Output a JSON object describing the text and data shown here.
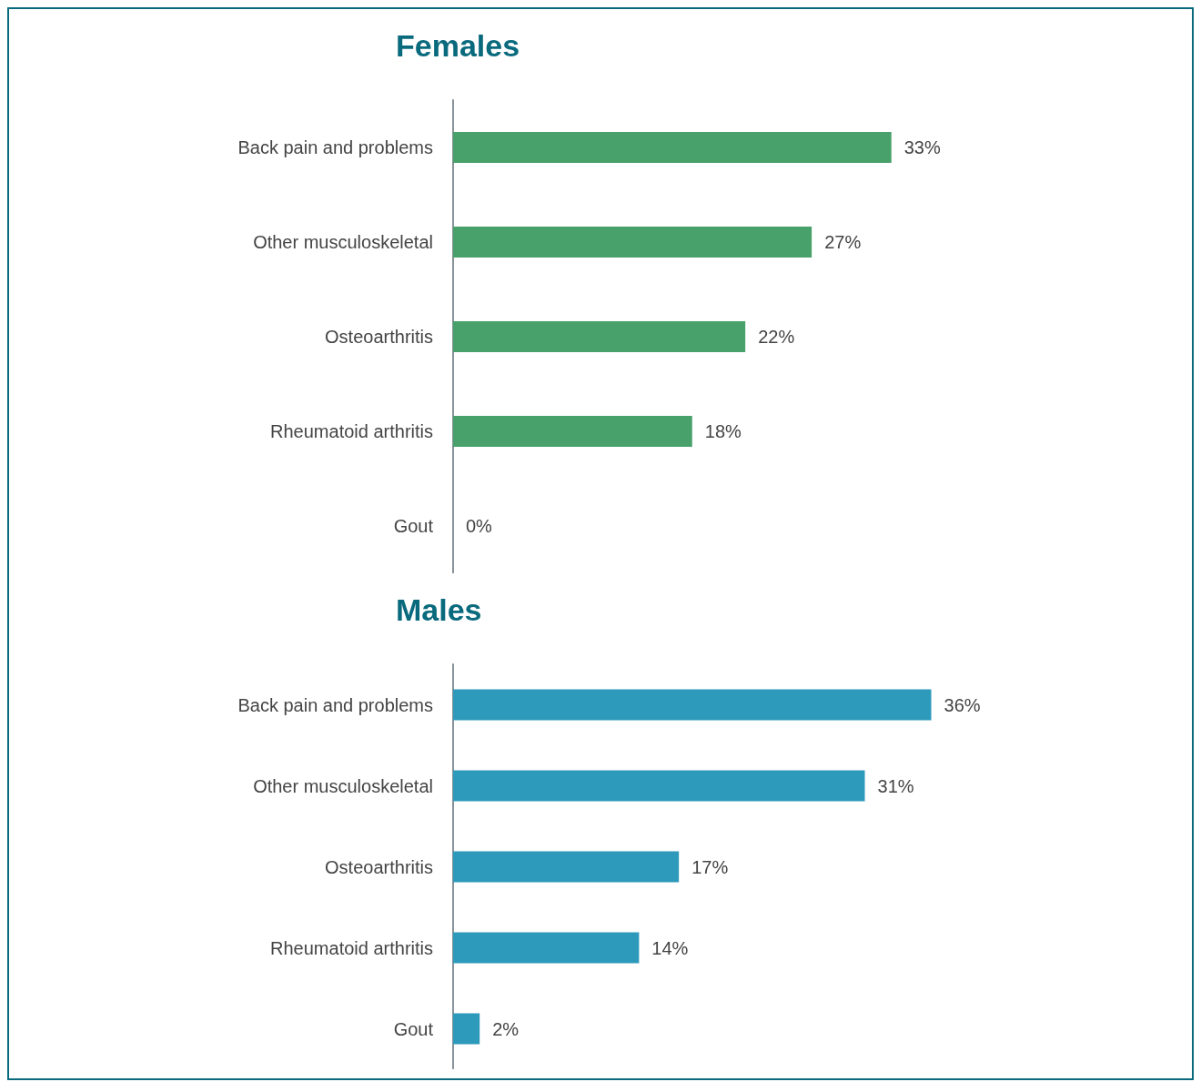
{
  "chart_data": [
    {
      "type": "bar",
      "orientation": "horizontal",
      "title": "Females",
      "categories": [
        "Back pain and problems",
        "Other musculoskeletal",
        "Osteoarthritis",
        "Rheumatoid arthritis",
        "Gout"
      ],
      "values": [
        33,
        27,
        22,
        18,
        0
      ],
      "value_labels": [
        "33%",
        "27%",
        "22%",
        "18%",
        "0%"
      ],
      "color": "#48a16b"
    },
    {
      "type": "bar",
      "orientation": "horizontal",
      "title": "Males",
      "categories": [
        "Back pain and problems",
        "Other musculoskeletal",
        "Osteoarthritis",
        "Rheumatoid arthritis",
        "Gout"
      ],
      "values": [
        36,
        31,
        17,
        14,
        2
      ],
      "value_labels": [
        "36%",
        "31%",
        "17%",
        "14%",
        "2%"
      ],
      "color": "#2e9abb"
    }
  ]
}
